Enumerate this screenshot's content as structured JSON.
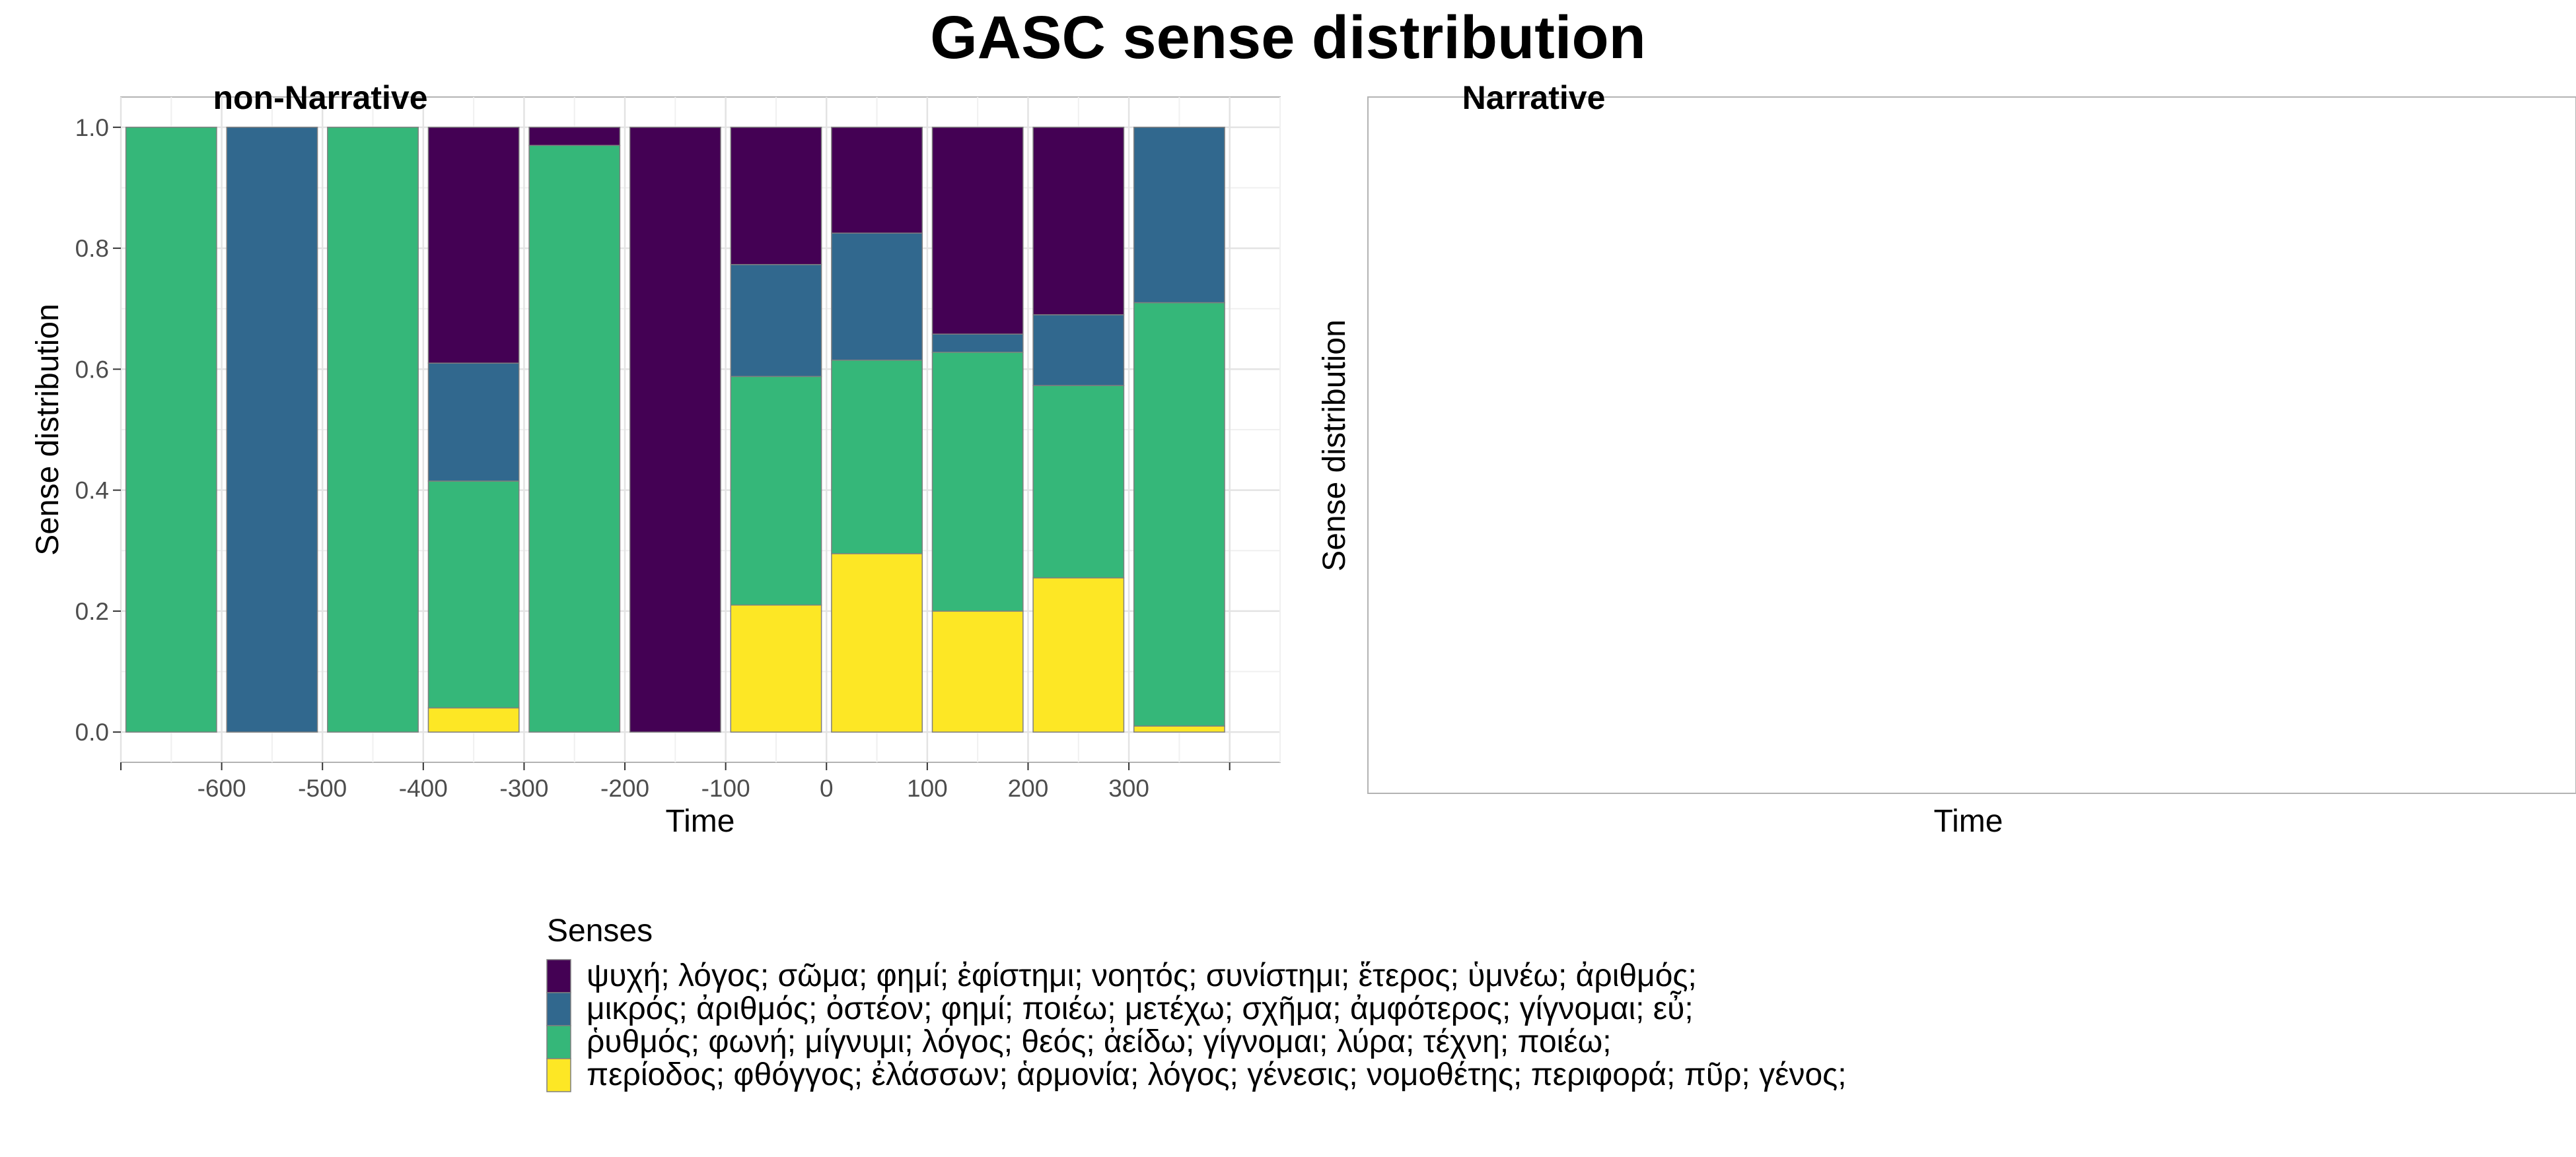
{
  "chart_data": {
    "title": "GASC sense distribution",
    "panels": [
      {
        "type": "bar",
        "stacked": true,
        "normalized": true,
        "strip_label": "non-Narrative",
        "xlabel": "Time",
        "ylabel": "Sense distribution",
        "x": [
          -650,
          -550,
          -450,
          -350,
          -250,
          -150,
          -50,
          50,
          150,
          250,
          350
        ],
        "x_ticks": [
          -600,
          -500,
          -400,
          -300,
          -200,
          -100,
          0,
          100,
          200,
          300
        ],
        "xlim": [
          -700,
          450
        ],
        "y_ticks": [
          0.0,
          0.2,
          0.4,
          0.6,
          0.8,
          1.0
        ],
        "ylim": [
          -0.05,
          1.05
        ],
        "grid": true,
        "series": [
          {
            "key": "s4",
            "color": "#FDE725",
            "values": [
              0,
              0,
              0,
              0.04,
              0,
              0,
              0.21,
              0.295,
              0.2,
              0.255,
              0.01
            ]
          },
          {
            "key": "s3",
            "color": "#35B779",
            "values": [
              1.0,
              0,
              1.0,
              0.375,
              0.97,
              0,
              0.378,
              0.32,
              0.428,
              0.318,
              0.7
            ]
          },
          {
            "key": "s2",
            "color": "#31688E",
            "values": [
              0,
              1.0,
              0,
              0.195,
              0,
              0,
              0.185,
              0.21,
              0.03,
              0.117,
              0.29
            ]
          },
          {
            "key": "s1",
            "color": "#440154",
            "values": [
              0,
              0,
              0,
              0.39,
              0.03,
              1.0,
              0.227,
              0.175,
              0.342,
              0.31,
              0
            ]
          }
        ]
      },
      {
        "type": "bar",
        "strip_label": "Narrative",
        "xlabel": "Time",
        "ylabel": "Sense distribution",
        "grid": false,
        "empty": true
      }
    ],
    "legend": {
      "title": "Senses",
      "position": "bottom",
      "entries": [
        {
          "label": "ψυχή; λόγος; σῶμα; φημί; ἐφίστημι; νοητός; συνίστημι; ἕτερος; ὑμνέω; ἀριθμός;",
          "color": "#440154"
        },
        {
          "label": "μικρός; ἀριθμός; ὀστέον; φημί; ποιέω; μετέχω; σχῆμα; ἀμφότερος; γίγνομαι; εὖ;",
          "color": "#31688E"
        },
        {
          "label": "ῥυθμός; φωνή; μίγνυμι; λόγος; θεός; ἀείδω; γίγνομαι; λύρα; τέχνη; ποιέω;",
          "color": "#35B779"
        },
        {
          "label": "περίοδος; φθόγγος; ἐλάσσων; ἁρμονία; λόγος; γένεσις; νομοθέτης; περιφορά; πῦρ; γένος;",
          "color": "#FDE725"
        }
      ]
    }
  }
}
